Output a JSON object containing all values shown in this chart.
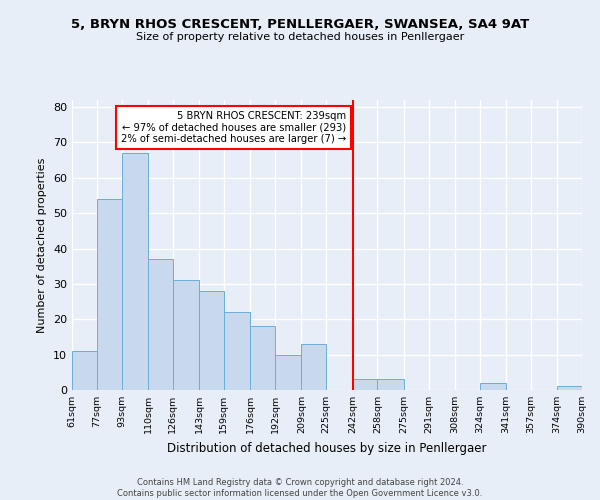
{
  "title": "5, BRYN RHOS CRESCENT, PENLLERGAER, SWANSEA, SA4 9AT",
  "subtitle": "Size of property relative to detached houses in Penllergaer",
  "xlabel": "Distribution of detached houses by size in Penllergaer",
  "ylabel": "Number of detached properties",
  "bin_edges": [
    61,
    77,
    93,
    110,
    126,
    143,
    159,
    176,
    192,
    209,
    225,
    242,
    258,
    275,
    291,
    308,
    324,
    341,
    357,
    374,
    390
  ],
  "bin_labels": [
    "61sqm",
    "77sqm",
    "93sqm",
    "110sqm",
    "126sqm",
    "143sqm",
    "159sqm",
    "176sqm",
    "192sqm",
    "209sqm",
    "225sqm",
    "242sqm",
    "258sqm",
    "275sqm",
    "291sqm",
    "308sqm",
    "324sqm",
    "341sqm",
    "357sqm",
    "374sqm",
    "390sqm"
  ],
  "counts": [
    11,
    54,
    67,
    37,
    31,
    28,
    22,
    18,
    10,
    13,
    0,
    3,
    3,
    0,
    0,
    0,
    2,
    0,
    0,
    1
  ],
  "bar_color": "#c8d9ee",
  "bar_edge_color": "#6aaed6",
  "vline_x": 242,
  "vline_color": "red",
  "annotation_title": "5 BRYN RHOS CRESCENT: 239sqm",
  "annotation_line1": "← 97% of detached houses are smaller (293)",
  "annotation_line2": "2% of semi-detached houses are larger (7) →",
  "annotation_box_color": "white",
  "annotation_box_edge": "red",
  "ylim": [
    0,
    82
  ],
  "yticks": [
    0,
    10,
    20,
    30,
    40,
    50,
    60,
    70,
    80
  ],
  "footer_line1": "Contains HM Land Registry data © Crown copyright and database right 2024.",
  "footer_line2": "Contains public sector information licensed under the Open Government Licence v3.0.",
  "background_color": "#e8eef7",
  "grid_color": "white",
  "title_fontsize": 9.5,
  "subtitle_fontsize": 8,
  "ylabel_fontsize": 8,
  "xlabel_fontsize": 8.5
}
